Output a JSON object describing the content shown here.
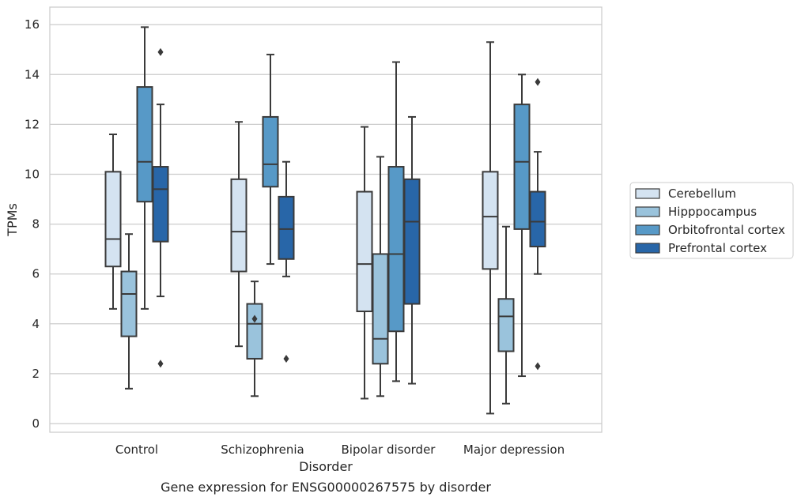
{
  "caption": "Gene expression for ENSG00000267575 by disorder",
  "chart_data": {
    "type": "box",
    "xlabel": "Disorder",
    "ylabel": "TPMs",
    "ylim": [
      -0.35,
      16.7
    ],
    "yticks": [
      0,
      2,
      4,
      6,
      8,
      10,
      12,
      14,
      16
    ],
    "grid": "horizontal",
    "legend_position": "right",
    "categories": [
      "Control",
      "Schizophrenia",
      "Bipolar disorder",
      "Major depression"
    ],
    "series": [
      {
        "name": "Cerebellum",
        "color": "#d4e3f1",
        "boxes": [
          {
            "whisker_low": 4.6,
            "q1": 6.3,
            "median": 7.4,
            "q3": 10.1,
            "whisker_high": 11.6,
            "outliers": []
          },
          {
            "whisker_low": 3.1,
            "q1": 6.1,
            "median": 7.7,
            "q3": 9.8,
            "whisker_high": 12.1,
            "outliers": []
          },
          {
            "whisker_low": 1.0,
            "q1": 4.5,
            "median": 6.4,
            "q3": 9.3,
            "whisker_high": 11.9,
            "outliers": []
          },
          {
            "whisker_low": 0.4,
            "q1": 6.2,
            "median": 8.3,
            "q3": 10.1,
            "whisker_high": 15.3,
            "outliers": []
          }
        ]
      },
      {
        "name": "Hipppocampus",
        "color": "#9ac3dc",
        "boxes": [
          {
            "whisker_low": 1.4,
            "q1": 3.5,
            "median": 5.2,
            "q3": 6.1,
            "whisker_high": 7.6,
            "outliers": []
          },
          {
            "whisker_low": 1.1,
            "q1": 2.6,
            "median": 4.0,
            "q3": 4.8,
            "whisker_high": 5.7,
            "outliers": [
              4.2
            ]
          },
          {
            "whisker_low": 1.1,
            "q1": 2.4,
            "median": 3.4,
            "q3": 6.8,
            "whisker_high": 10.7,
            "outliers": []
          },
          {
            "whisker_low": 0.8,
            "q1": 2.9,
            "median": 4.3,
            "q3": 5.0,
            "whisker_high": 7.9,
            "outliers": []
          }
        ]
      },
      {
        "name": "Orbitofrontal cortex",
        "color": "#5799c7",
        "boxes": [
          {
            "whisker_low": 4.6,
            "q1": 8.9,
            "median": 10.5,
            "q3": 13.5,
            "whisker_high": 15.9,
            "outliers": []
          },
          {
            "whisker_low": 6.4,
            "q1": 9.5,
            "median": 10.4,
            "q3": 12.3,
            "whisker_high": 14.8,
            "outliers": []
          },
          {
            "whisker_low": 1.7,
            "q1": 3.7,
            "median": 6.8,
            "q3": 10.3,
            "whisker_high": 14.5,
            "outliers": []
          },
          {
            "whisker_low": 1.9,
            "q1": 7.8,
            "median": 10.5,
            "q3": 12.8,
            "whisker_high": 14.0,
            "outliers": []
          }
        ]
      },
      {
        "name": "Prefrontal cortex",
        "color": "#2866a8",
        "boxes": [
          {
            "whisker_low": 5.1,
            "q1": 7.3,
            "median": 9.4,
            "q3": 10.3,
            "whisker_high": 12.8,
            "outliers": [
              14.9,
              2.4
            ]
          },
          {
            "whisker_low": 5.9,
            "q1": 6.6,
            "median": 7.8,
            "q3": 9.1,
            "whisker_high": 10.5,
            "outliers": [
              2.6
            ]
          },
          {
            "whisker_low": 1.6,
            "q1": 4.8,
            "median": 8.1,
            "q3": 9.8,
            "whisker_high": 12.3,
            "outliers": []
          },
          {
            "whisker_low": 6.0,
            "q1": 7.1,
            "median": 8.1,
            "q3": 9.3,
            "whisker_high": 10.9,
            "outliers": [
              13.7,
              2.3
            ]
          }
        ]
      }
    ]
  }
}
